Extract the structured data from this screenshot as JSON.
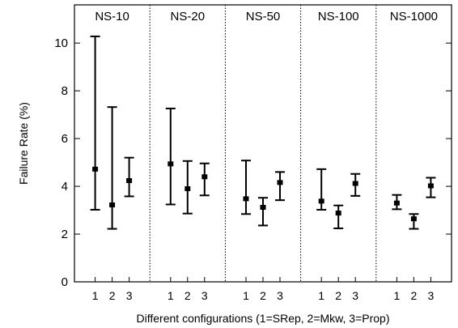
{
  "chart_data": {
    "type": "errorbar",
    "title": "",
    "xlabel": "Different configurations (1=SRep, 2=Mkw, 3=Prop)",
    "ylabel": "Failure Rate (%)",
    "ylim": [
      0,
      11.6
    ],
    "yticks": [
      0,
      2,
      4,
      6,
      8,
      10
    ],
    "grid": false,
    "groups": [
      {
        "name": "NS-10",
        "configs": [
          {
            "label": "1",
            "mean": 4.72,
            "low": 3.02,
            "high": 10.28
          },
          {
            "label": "2",
            "mean": 3.22,
            "low": 2.22,
            "high": 7.32
          },
          {
            "label": "3",
            "mean": 4.24,
            "low": 3.58,
            "high": 5.2
          }
        ]
      },
      {
        "name": "NS-20",
        "configs": [
          {
            "label": "1",
            "mean": 4.94,
            "low": 3.24,
            "high": 7.26
          },
          {
            "label": "2",
            "mean": 3.9,
            "low": 2.86,
            "high": 5.06
          },
          {
            "label": "3",
            "mean": 4.4,
            "low": 3.62,
            "high": 4.96
          }
        ]
      },
      {
        "name": "NS-50",
        "configs": [
          {
            "label": "1",
            "mean": 3.48,
            "low": 2.84,
            "high": 5.08
          },
          {
            "label": "2",
            "mean": 3.12,
            "low": 2.36,
            "high": 3.52
          },
          {
            "label": "3",
            "mean": 4.16,
            "low": 3.42,
            "high": 4.6
          }
        ]
      },
      {
        "name": "NS-100",
        "configs": [
          {
            "label": "1",
            "mean": 3.38,
            "low": 3.02,
            "high": 4.72
          },
          {
            "label": "2",
            "mean": 2.88,
            "low": 2.24,
            "high": 3.2
          },
          {
            "label": "3",
            "mean": 4.12,
            "low": 3.6,
            "high": 4.52
          }
        ]
      },
      {
        "name": "NS-1000",
        "configs": [
          {
            "label": "1",
            "mean": 3.3,
            "low": 3.04,
            "high": 3.64
          },
          {
            "label": "2",
            "mean": 2.64,
            "low": 2.22,
            "high": 2.84
          },
          {
            "label": "3",
            "mean": 4.02,
            "low": 3.54,
            "high": 4.36
          }
        ]
      }
    ],
    "colors": {
      "marks": "#000000",
      "separator": "#000000",
      "background": "#ffffff"
    }
  }
}
